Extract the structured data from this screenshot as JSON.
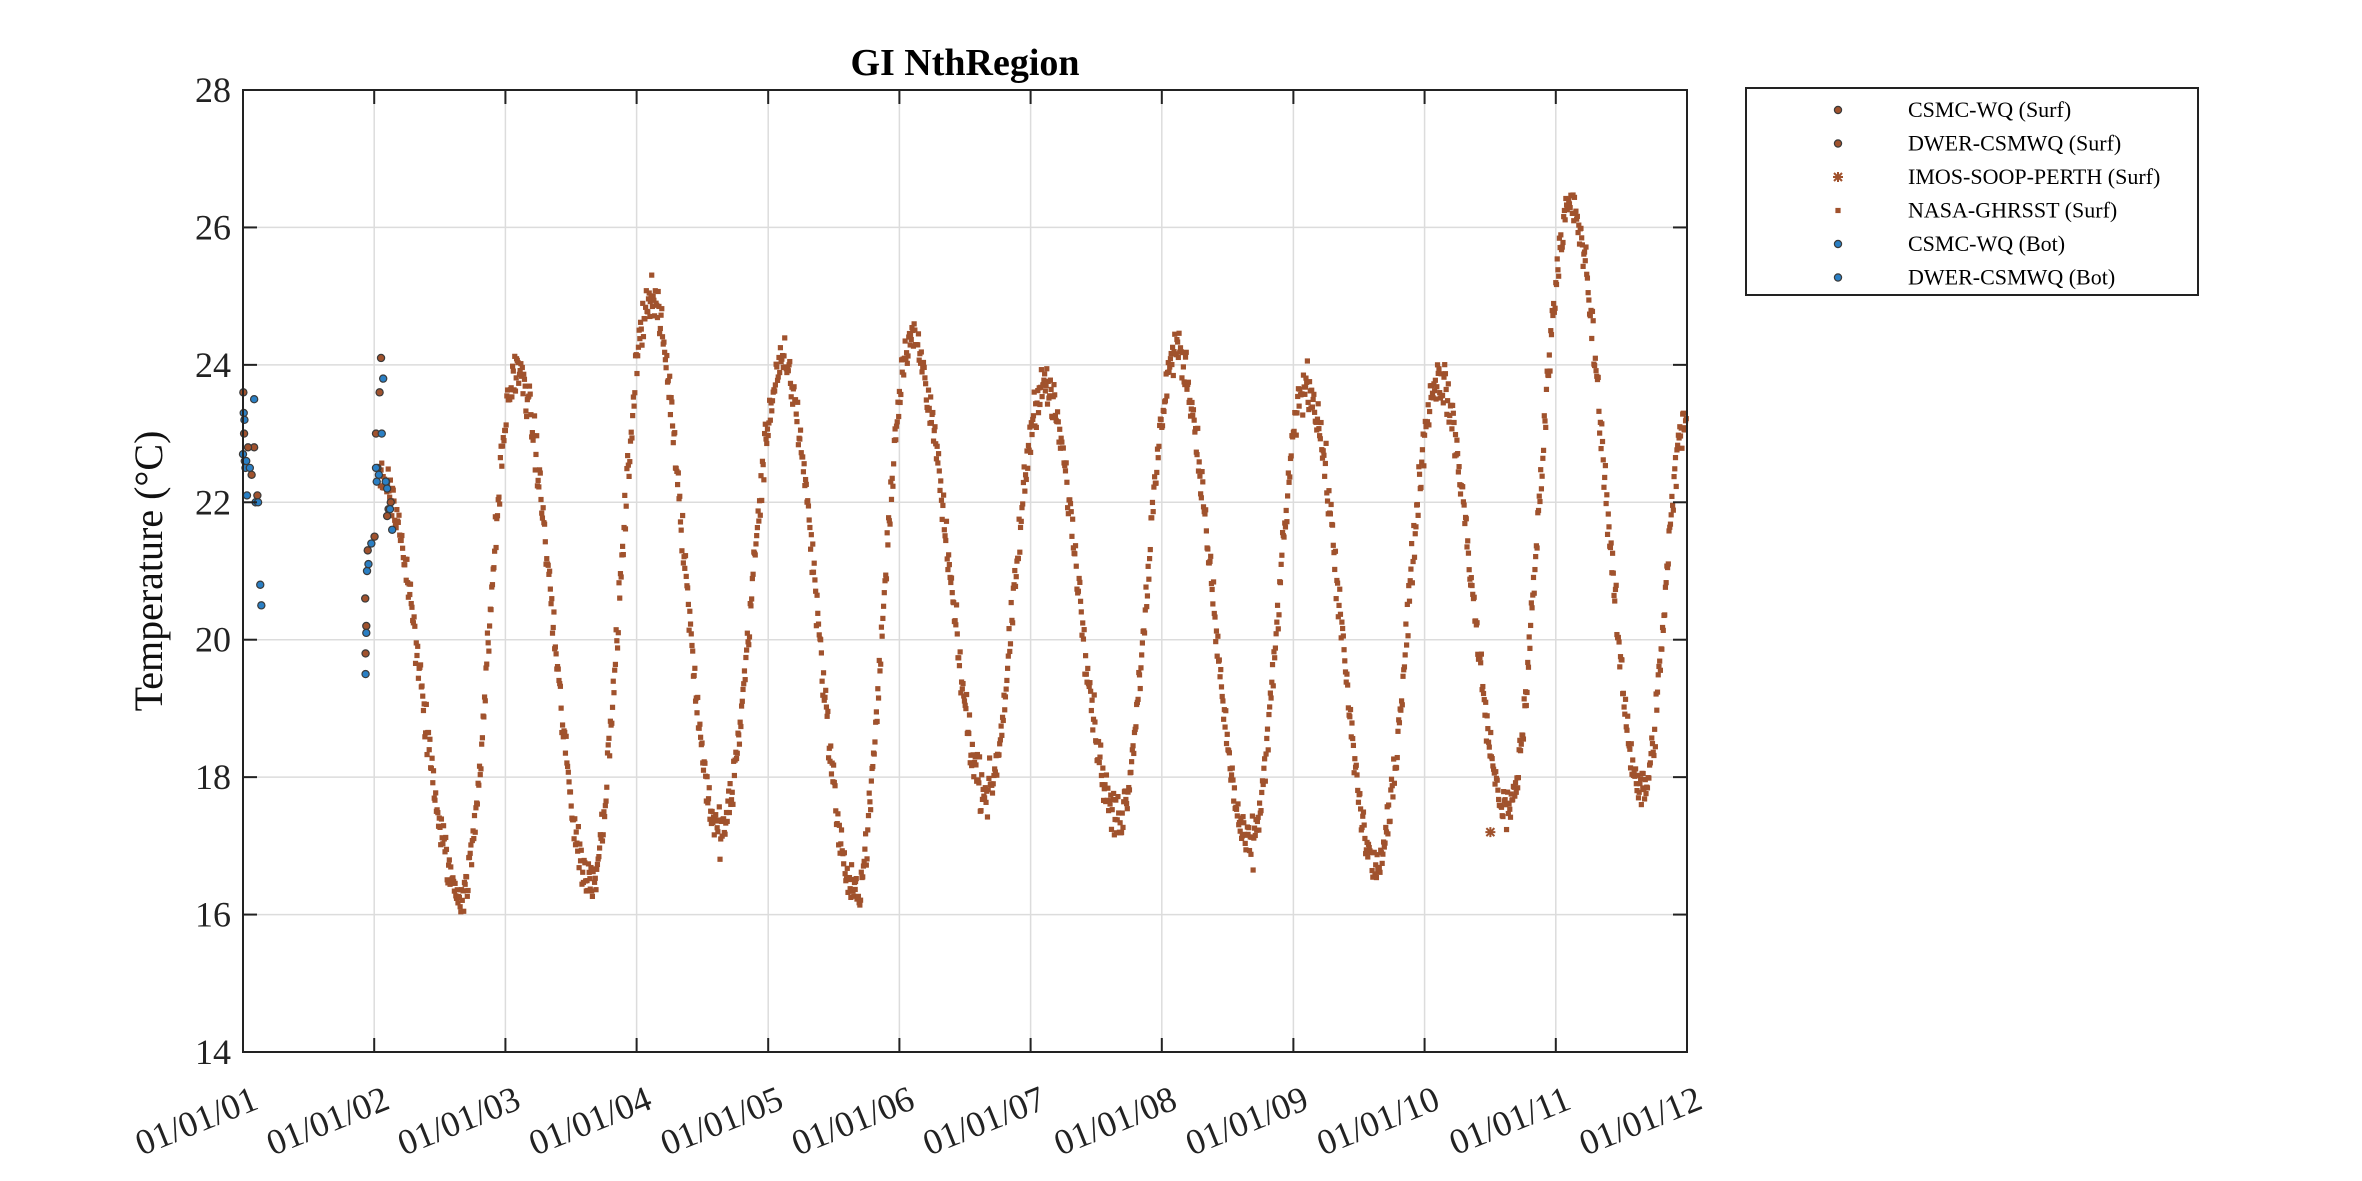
{
  "chart_data": {
    "type": "scatter",
    "title": "GI NthRegion",
    "ylabel": "Temperature (°C)",
    "xlabel": "",
    "ylim": [
      14,
      28
    ],
    "yticks": [
      14,
      16,
      18,
      20,
      22,
      24,
      26,
      28
    ],
    "xlim": [
      "2001-01-01",
      "2012-01-01"
    ],
    "xtick_labels": [
      "01/01/01",
      "01/01/02",
      "01/01/03",
      "01/01/04",
      "01/01/05",
      "01/01/06",
      "01/01/07",
      "01/01/08",
      "01/01/09",
      "01/01/10",
      "01/01/11",
      "01/01/12"
    ],
    "grid": true,
    "legend_position": "outside-top-right",
    "colors": {
      "surface": "#a0522d",
      "bottom": "#2a7fc4",
      "marker_edge": "#3a3a3a"
    },
    "series": [
      {
        "name": "CSMC-WQ (Surf)",
        "marker": "circle",
        "color": "#a0522d",
        "points": [
          [
            "2001-01-02",
            23.6
          ],
          [
            "2001-01-04",
            23.0
          ],
          [
            "2001-01-06",
            22.6
          ],
          [
            "2001-02-01",
            22.8
          ],
          [
            "2001-02-10",
            22.1
          ],
          [
            "2001-12-07",
            20.6
          ],
          [
            "2001-12-08",
            19.8
          ],
          [
            "2001-12-14",
            21.3
          ],
          [
            "2002-01-02",
            21.5
          ],
          [
            "2002-01-10",
            22.5
          ],
          [
            "2002-01-16",
            23.6
          ],
          [
            "2002-01-20",
            24.1
          ],
          [
            "2002-02-03",
            22.3
          ],
          [
            "2002-02-10",
            21.9
          ],
          [
            "2002-02-16",
            22.0
          ]
        ]
      },
      {
        "name": "DWER-CSMWQ (Surf)",
        "marker": "circle",
        "color": "#a0522d",
        "points": [
          [
            "2001-01-15",
            22.8
          ],
          [
            "2001-01-25",
            22.4
          ],
          [
            "2001-12-10",
            20.2
          ],
          [
            "2002-01-06",
            23.0
          ],
          [
            "2002-02-06",
            21.8
          ]
        ]
      },
      {
        "name": "IMOS-SOOP-PERTH (Surf)",
        "marker": "star",
        "color": "#a0522d",
        "points": [
          [
            "2010-07-03",
            17.2
          ]
        ]
      },
      {
        "name": "NASA-GHRSST (Surf)",
        "marker": "square",
        "color": "#a0522d",
        "peaks": [
          [
            "2002-01-18",
            22.4
          ],
          [
            "2003-02-01",
            23.9
          ],
          [
            "2004-02-08",
            25.0
          ],
          [
            "2005-02-10",
            24.0
          ],
          [
            "2006-02-01",
            24.4
          ],
          [
            "2007-02-05",
            23.7
          ],
          [
            "2008-02-10",
            24.2
          ],
          [
            "2009-02-05",
            23.7
          ],
          [
            "2010-02-08",
            23.8
          ],
          [
            "2011-02-10",
            26.3
          ]
        ],
        "troughs": [
          [
            "2002-09-01",
            16.3
          ],
          [
            "2003-08-25",
            16.5
          ],
          [
            "2004-08-20",
            17.2
          ],
          [
            "2005-09-01",
            16.3
          ],
          [
            "2006-09-01",
            17.8
          ],
          [
            "2007-09-01",
            17.4
          ],
          [
            "2008-09-01",
            17.0
          ],
          [
            "2009-08-20",
            16.7
          ],
          [
            "2010-08-20",
            17.5
          ],
          [
            "2011-09-01",
            17.8
          ]
        ],
        "end": [
          "2011-12-31",
          23.3
        ]
      },
      {
        "name": "CSMC-WQ (Bot)",
        "marker": "circle",
        "color": "#2a7fc4",
        "points": [
          [
            "2001-01-03",
            23.3
          ],
          [
            "2001-01-05",
            23.2
          ],
          [
            "2001-01-08",
            22.5
          ],
          [
            "2001-01-12",
            22.1
          ],
          [
            "2001-01-20",
            22.5
          ],
          [
            "2001-02-05",
            22.0
          ],
          [
            "2001-02-12",
            22.0
          ],
          [
            "2001-02-18",
            20.8
          ],
          [
            "2001-02-21",
            20.5
          ],
          [
            "2001-12-08",
            19.5
          ],
          [
            "2001-12-12",
            21.0
          ],
          [
            "2001-12-16",
            21.1
          ],
          [
            "2001-12-24",
            21.4
          ],
          [
            "2002-01-08",
            22.3
          ],
          [
            "2002-01-14",
            22.4
          ],
          [
            "2002-01-22",
            23.0
          ],
          [
            "2002-02-06",
            22.2
          ],
          [
            "2002-02-14",
            21.9
          ],
          [
            "2002-02-20",
            21.6
          ]
        ]
      },
      {
        "name": "DWER-CSMWQ (Bot)",
        "marker": "circle",
        "color": "#2a7fc4",
        "points": [
          [
            "2001-01-01",
            22.7
          ],
          [
            "2001-01-10",
            22.6
          ],
          [
            "2001-02-01",
            23.5
          ],
          [
            "2001-12-10",
            20.1
          ],
          [
            "2002-01-06",
            22.5
          ],
          [
            "2002-01-26",
            23.8
          ],
          [
            "2002-02-02",
            22.3
          ]
        ]
      }
    ]
  }
}
